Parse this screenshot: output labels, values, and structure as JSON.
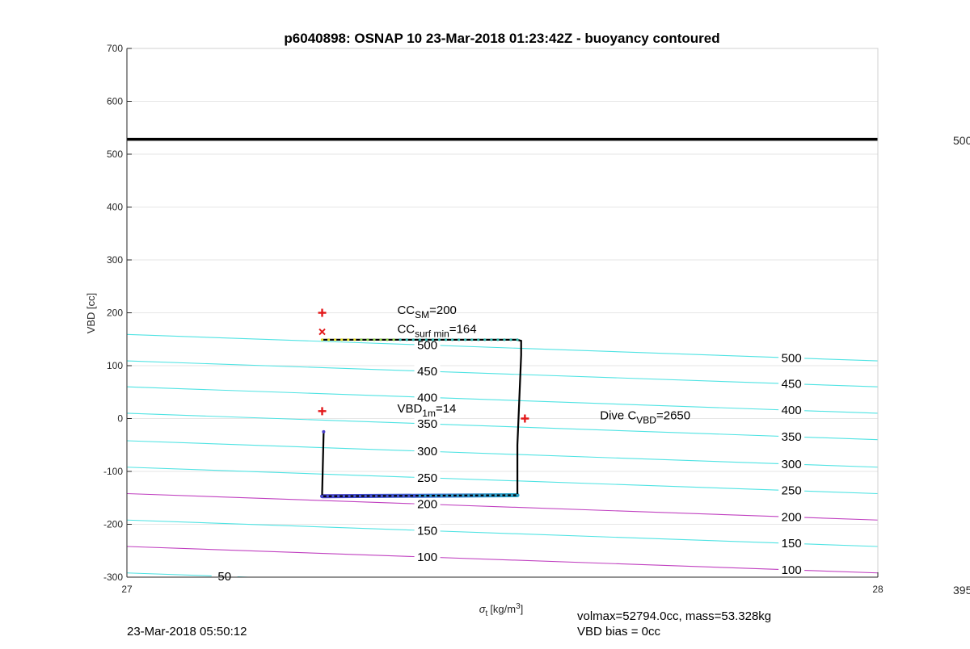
{
  "chart_data": {
    "type": "line",
    "title": "p6040898: OSNAP 10 23-Mar-2018 01:23:42Z - buoyancy contoured",
    "xlabel": "σ",
    "xlabel_sub": "t",
    "xlabel_unit": "[kg/m",
    "xlabel_unit_sup": "3",
    "xlabel_unit_end": "]",
    "ylabel": "VBD [cc]",
    "xlim": [
      27,
      28
    ],
    "ylim": [
      -300,
      700
    ],
    "xticks": [
      "27",
      "28"
    ],
    "yticks": [
      "700",
      "600",
      "500",
      "400",
      "300",
      "200",
      "100",
      "0",
      "-100",
      "-200",
      "-300"
    ],
    "grid": "y",
    "colorbar_labels": [
      "500",
      "395"
    ],
    "reference_line": {
      "y": 528,
      "color": "#000000"
    },
    "contours": [
      {
        "level": 500,
        "y0": 159,
        "y1": 109,
        "color": "#4fe3e3",
        "label_left": "500",
        "label_right": "500"
      },
      {
        "level": 450,
        "y0": 109,
        "y1": 60,
        "color": "#4fe3e3",
        "label_left": "450",
        "label_right": "450"
      },
      {
        "level": 400,
        "y0": 60,
        "y1": 10,
        "color": "#4fe3e3",
        "label_left": "400",
        "label_right": "400"
      },
      {
        "level": 350,
        "y0": 10,
        "y1": -40,
        "color": "#4fe3e3",
        "label_left": "350",
        "label_right": "350"
      },
      {
        "level": 300,
        "y0": -42,
        "y1": -92,
        "color": "#4fe3e3",
        "label_left": "300",
        "label_right": "300"
      },
      {
        "level": 250,
        "y0": -92,
        "y1": -142,
        "color": "#4fe3e3",
        "label_left": "250",
        "label_right": "250"
      },
      {
        "level": 200,
        "y0": -142,
        "y1": -192,
        "color": "#c040c0",
        "label_left": "200",
        "label_right": "200"
      },
      {
        "level": 150,
        "y0": -192,
        "y1": -242,
        "color": "#4fe3e3",
        "label_left": "150",
        "label_right": "150"
      },
      {
        "level": 100,
        "y0": -242,
        "y1": -292,
        "color": "#c040c0",
        "label_left": "100",
        "label_right": "100"
      },
      {
        "level": 50,
        "y0": -292,
        "y1": -342,
        "color": "#4fe3e3",
        "label_left": "50",
        "label_right": ""
      }
    ],
    "series": [
      {
        "x": [
          27.26,
          27.52,
          27.525,
          27.525,
          27.52,
          27.52,
          27.26,
          27.26,
          27.262
        ],
        "y": [
          149,
          149,
          147,
          120,
          -50,
          -145,
          -147,
          -140,
          -25
        ]
      }
    ],
    "markers": [
      {
        "x": 27.26,
        "y": 200,
        "symbol": "plus",
        "color": "#e31a1c"
      },
      {
        "x": 27.26,
        "y": 164,
        "symbol": "x",
        "color": "#e31a1c"
      },
      {
        "x": 27.26,
        "y": 14,
        "symbol": "plus",
        "color": "#e31a1c"
      },
      {
        "x": 27.53,
        "y": 0,
        "symbol": "plus",
        "color": "#e31a1c"
      }
    ],
    "annotations": [
      {
        "main": "CC",
        "sub": "SM",
        "rest": "=200",
        "x": 27.36,
        "y": 199
      },
      {
        "main": "CC",
        "sub": "surf min",
        "rest": "=164",
        "x": 27.36,
        "y": 163
      },
      {
        "main": "VBD",
        "sub": "1m",
        "rest": "=14",
        "x": 27.36,
        "y": 13
      },
      {
        "main": "Dive C",
        "sub": "VBD",
        "rest": "=2650",
        "x": 27.63,
        "y": 0
      }
    ]
  },
  "footer": {
    "date": "23-Mar-2018 05:50:12",
    "volmax": "volmax=52794.0cc, mass=53.328kg",
    "bias": "VBD bias = 0cc"
  }
}
